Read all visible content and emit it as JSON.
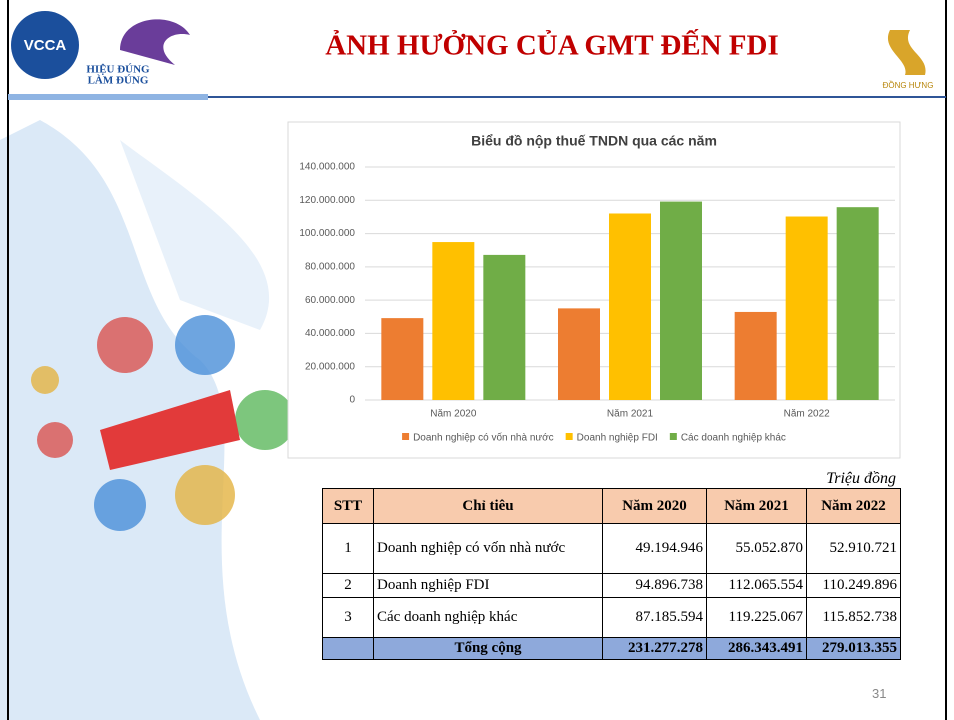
{
  "header": {
    "title": "ẢNH HƯỞNG CỦA GMT ĐẾN FDI",
    "logo_left": "VCCA",
    "slogan": [
      "HIỆU ĐÚNG",
      "LÀM ĐÚNG"
    ],
    "logo_right": "ĐỒNG HƯNG"
  },
  "chart_data": {
    "type": "bar",
    "title": "Biểu đồ nộp thuế TNDN qua các năm",
    "categories": [
      "Năm 2020",
      "Năm 2021",
      "Năm 2022"
    ],
    "series": [
      {
        "name": "Doanh nghiệp có vốn nhà nước",
        "color": "#ED7D31",
        "values": [
          49194946,
          55052870,
          52910721
        ]
      },
      {
        "name": "Doanh nghiệp FDI",
        "color": "#FFC000",
        "values": [
          94896738,
          112065554,
          110249896
        ]
      },
      {
        "name": "Các doanh nghiệp khác",
        "color": "#70AD47",
        "values": [
          87185594,
          119225067,
          115852738
        ]
      }
    ],
    "ylim": [
      0,
      140000000
    ],
    "yticks": [
      0,
      {
        "value": 20000000,
        "label": "20.000.000"
      },
      {
        "value": 40000000,
        "label": "40.000.000"
      },
      {
        "value": 60000000,
        "label": "60.000.000"
      },
      {
        "value": 80000000,
        "label": "80.000.000"
      },
      {
        "value": 100000000,
        "label": "100.000.000"
      },
      {
        "value": 120000000,
        "label": "120.000.000"
      },
      {
        "value": 140000000,
        "label": "140.000.000"
      }
    ],
    "grid": true,
    "legend": "bottom"
  },
  "table": {
    "unit": "Triệu đồng",
    "header": [
      "STT",
      "Chỉ tiêu",
      "Năm 2020",
      "Năm 2021",
      "Năm 2022"
    ],
    "rows": [
      [
        "1",
        "Doanh nghiệp có vốn nhà nước",
        "49.194.946",
        "55.052.870",
        "52.910.721"
      ],
      [
        "2",
        "Doanh nghiệp FDI",
        "94.896.738",
        "112.065.554",
        "110.249.896"
      ],
      [
        "3",
        "Các doanh nghiệp khác",
        "87.185.594",
        "119.225.067",
        "115.852.738"
      ]
    ],
    "total": [
      "Tổng cộng",
      "231.277.278",
      "286.343.491",
      "279.013.355"
    ]
  },
  "page_number": "31"
}
